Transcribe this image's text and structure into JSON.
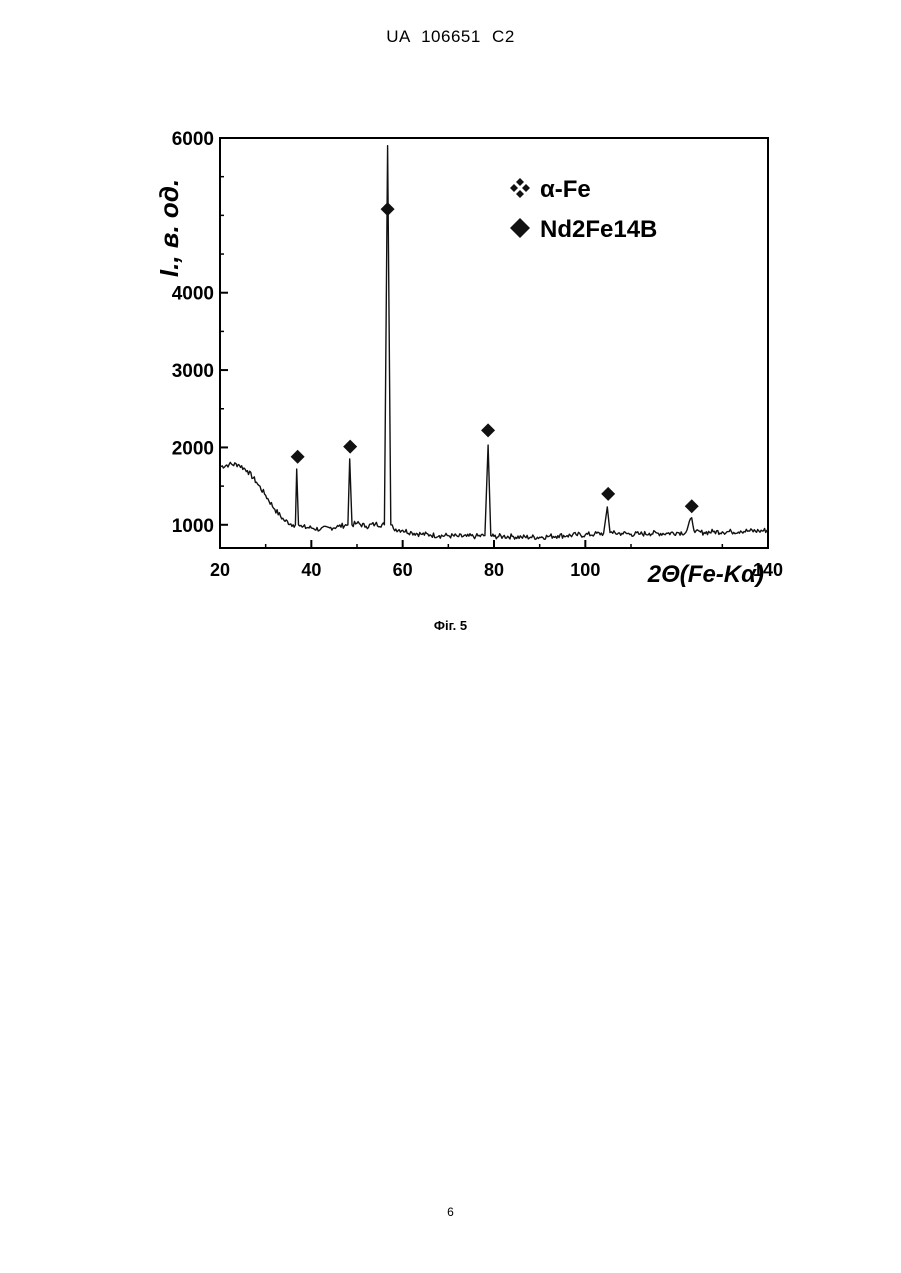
{
  "page": {
    "header": "UA 106651 C2",
    "figure_caption": "Фіг. 5",
    "page_number": "6"
  },
  "chart_data": {
    "type": "line",
    "title": "",
    "xlabel": "2Θ(Fe-Kα)",
    "ylabel": "I., в. од.",
    "xlim": [
      20,
      140
    ],
    "ylim": [
      700,
      6000
    ],
    "x_ticks": [
      20,
      40,
      60,
      80,
      100,
      140
    ],
    "y_ticks": [
      1000,
      2000,
      3000,
      4000,
      6000
    ],
    "legend": [
      {
        "symbol": "open-diamond",
        "label": "α-Fe"
      },
      {
        "symbol": "filled-diamond",
        "label": "Nd2Fe14B"
      }
    ],
    "legend_position": "top-right",
    "series": [
      {
        "points": [
          [
            20,
            1750
          ],
          [
            22,
            1780
          ],
          [
            24,
            1780
          ],
          [
            26,
            1700
          ],
          [
            28,
            1550
          ],
          [
            30,
            1380
          ],
          [
            32,
            1200
          ],
          [
            34,
            1060
          ],
          [
            36,
            1000
          ],
          [
            36.5,
            1000
          ],
          [
            36.8,
            1720
          ],
          [
            37.2,
            1000
          ],
          [
            38,
            970
          ],
          [
            40,
            960
          ],
          [
            42,
            940
          ],
          [
            44,
            960
          ],
          [
            46,
            980
          ],
          [
            48,
            1000
          ],
          [
            48.4,
            1850
          ],
          [
            48.9,
            1000
          ],
          [
            50,
            1020
          ],
          [
            52,
            980
          ],
          [
            54,
            1010
          ],
          [
            56,
            1000
          ],
          [
            56.7,
            5900
          ],
          [
            57.4,
            1000
          ],
          [
            58,
            950
          ],
          [
            60,
            930
          ],
          [
            62,
            900
          ],
          [
            64,
            880
          ],
          [
            66,
            870
          ],
          [
            68,
            860
          ],
          [
            70,
            860
          ],
          [
            72,
            850
          ],
          [
            74,
            850
          ],
          [
            76,
            850
          ],
          [
            78,
            860
          ],
          [
            78.7,
            2030
          ],
          [
            79.3,
            860
          ],
          [
            80,
            850
          ],
          [
            82,
            850
          ],
          [
            84,
            850
          ],
          [
            86,
            840
          ],
          [
            88,
            840
          ],
          [
            90,
            840
          ],
          [
            92,
            850
          ],
          [
            94,
            860
          ],
          [
            96,
            860
          ],
          [
            98,
            870
          ],
          [
            100,
            870
          ],
          [
            102,
            880
          ],
          [
            104,
            890
          ],
          [
            104.8,
            1230
          ],
          [
            105.4,
            900
          ],
          [
            106,
            890
          ],
          [
            108,
            890
          ],
          [
            110,
            880
          ],
          [
            112,
            880
          ],
          [
            114,
            890
          ],
          [
            116,
            890
          ],
          [
            118,
            890
          ],
          [
            120,
            900
          ],
          [
            122,
            900
          ],
          [
            123.3,
            1090
          ],
          [
            124,
            900
          ],
          [
            126,
            900
          ],
          [
            128,
            910
          ],
          [
            130,
            910
          ],
          [
            132,
            910
          ],
          [
            134,
            920
          ],
          [
            136,
            920
          ],
          [
            138,
            920
          ],
          [
            140,
            930
          ]
        ]
      }
    ],
    "peak_markers": [
      {
        "x": 37,
        "y": 1880,
        "symbol": "filled-diamond"
      },
      {
        "x": 48.5,
        "y": 2010,
        "symbol": "filled-diamond"
      },
      {
        "x": 56.7,
        "y": 5080,
        "symbol": "filled-diamond"
      },
      {
        "x": 78.7,
        "y": 2220,
        "symbol": "filled-diamond"
      },
      {
        "x": 105,
        "y": 1400,
        "symbol": "filled-diamond"
      },
      {
        "x": 123.3,
        "y": 1240,
        "symbol": "filled-diamond"
      }
    ]
  }
}
